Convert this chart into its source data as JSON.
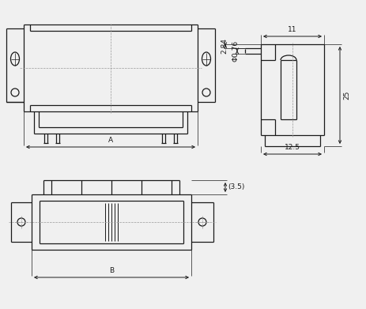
{
  "bg_color": "#f0f0f0",
  "line_color": "#1a1a1a",
  "dim_color": "#1a1a1a",
  "thin_color": "#999999",
  "font_size": 6.5,
  "dims": {
    "A_label": "A",
    "B_label": "B",
    "d11": "11",
    "d25": "25",
    "d12_5": "12.5",
    "d2_84": "2.84",
    "d0_76": "Φ0.76",
    "d3_5": "(3.5)"
  }
}
